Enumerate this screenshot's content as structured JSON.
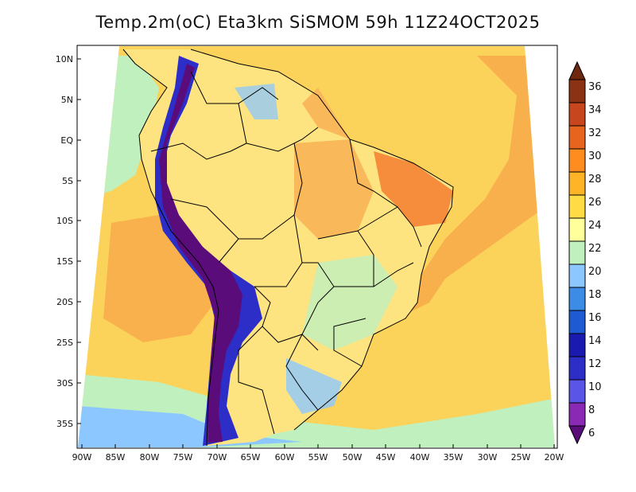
{
  "title": "Temp.2m(oC) Eta3km SiSMOM 59h 11Z24OCT2025",
  "lat_labels": [
    "10N",
    "5N",
    "EQ",
    "5S",
    "10S",
    "15S",
    "20S",
    "25S",
    "30S",
    "35S"
  ],
  "lon_labels": [
    "90W",
    "85W",
    "80W",
    "75W",
    "70W",
    "65W",
    "60W",
    "55W",
    "50W",
    "45W",
    "40W",
    "35W",
    "30W",
    "25W",
    "20W"
  ],
  "colorbar": {
    "labels": [
      "6",
      "8",
      "10",
      "12",
      "14",
      "16",
      "18",
      "20",
      "22",
      "24",
      "26",
      "28",
      "30",
      "32",
      "34",
      "36"
    ],
    "colors": [
      "#5a0d7a",
      "#8a2ab4",
      "#5a55e6",
      "#2d2dc8",
      "#1a1ab0",
      "#1e5ad2",
      "#3c8ce6",
      "#8cc8ff",
      "#bff0be",
      "#ffff9b",
      "#ffdc46",
      "#ffb428",
      "#ff8c1e",
      "#e6641e",
      "#c8461e",
      "#8c3214",
      "#6e2810"
    ]
  },
  "colors": {
    "ocean_base": "#fcd35a",
    "ocean_warm": "#f7a94a",
    "coast_cool": "#bff0be",
    "coast_blue": "#8cc8ff",
    "andes_deep": "#5a0d7a",
    "andes_mid": "#2d2dc8",
    "land_base": "#fee481",
    "land_warm": "#f9b95b",
    "land_hot": "#f58d3c",
    "south_cool": "#8cc8ff"
  }
}
